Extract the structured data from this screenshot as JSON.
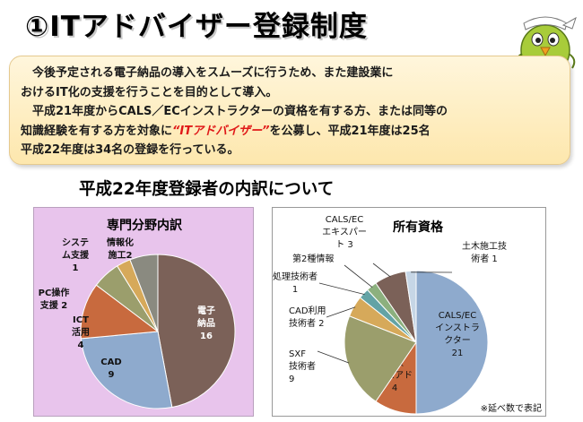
{
  "title": "①ITアドバイザー登録制度",
  "intro": {
    "line1": "今後予定される電子納品の導入をスムーズに行うため、また建設業に",
    "line2": "おけるIT化の支援を行うことを目的として導入。",
    "line3": "平成21年度からCALS／ECインストラクターの資格を有する方、または同等の",
    "line4_pre": "知識経験を有する方を対象に",
    "line4_hl": "“ITアドバイザー”",
    "line4_post": "を公募し、平成21年度は25名",
    "line5": "平成22年度は34名の登録を行っている。"
  },
  "section_title": "平成22年度登録者の内訳について",
  "note": "※延べ数で表記",
  "chart_data": [
    {
      "type": "pie",
      "title": "専門分野内訳",
      "categories": [
        "電子納品",
        "CAD",
        "ICT活用",
        "PC操作支援",
        "システム支援",
        "情報化施工"
      ],
      "values": [
        16,
        9,
        4,
        2,
        1,
        2
      ],
      "colors": [
        "#7b6158",
        "#8eaacd",
        "#c86a3e",
        "#9b9e6c",
        "#d6a95a",
        "#8a8a80"
      ],
      "labels": [
        {
          "lines": [
            "電子",
            "納品",
            "16"
          ],
          "white": true
        },
        {
          "lines": [
            "CAD",
            "9"
          ],
          "white": false
        },
        {
          "lines": [
            "ICT",
            "活用",
            "4"
          ],
          "white": false
        },
        {
          "lines": [
            "PC操作",
            "支援 2"
          ],
          "white": false
        },
        {
          "lines": [
            "システ",
            "ム支援",
            "1"
          ],
          "white": false
        },
        {
          "lines": [
            "情報化",
            "施工2"
          ],
          "white": false
        }
      ]
    },
    {
      "type": "pie",
      "title": "所有資格",
      "categories": [
        "CALS/ECインストラクター",
        "初級シスアド",
        "SXF技術者",
        "CAD利用技術者",
        "処理技術者",
        "第2種情報",
        "CALS/ECエキスパート",
        "土木施工技術者"
      ],
      "values": [
        21,
        4,
        9,
        2,
        1,
        1,
        3,
        1
      ],
      "colors": [
        "#8eaacd",
        "#c86a3e",
        "#9b9e6c",
        "#d6a95a",
        "#63a3a5",
        "#8cb07e",
        "#7b6158",
        "#c6d6e6"
      ],
      "labels": [
        {
          "lines": [
            "CALS/EC",
            "インストラ",
            "クター",
            "21"
          ]
        },
        {
          "lines": [
            "初級",
            "シスアド",
            "4"
          ]
        },
        {
          "lines": [
            "SXF",
            "技術者",
            "9"
          ]
        },
        {
          "lines": [
            "CAD利用",
            "技術者 2"
          ]
        },
        {
          "lines": [
            "処理技術者",
            "1"
          ]
        },
        {
          "lines": [
            "第2種情報"
          ]
        },
        {
          "lines": [
            "CALS/EC",
            "エキスパー",
            "ト 3"
          ]
        },
        {
          "lines": [
            "土木施工技",
            "術者 1"
          ]
        }
      ]
    }
  ]
}
